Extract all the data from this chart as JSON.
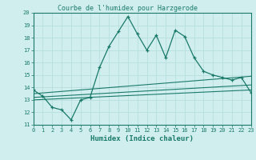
{
  "title": "Courbe de l'humidex pour Harzgerode",
  "xlabel": "Humidex (Indice chaleur)",
  "xlim": [
    0,
    23
  ],
  "ylim": [
    11,
    20
  ],
  "yticks": [
    11,
    12,
    13,
    14,
    15,
    16,
    17,
    18,
    19,
    20
  ],
  "xticks": [
    0,
    1,
    2,
    3,
    4,
    5,
    6,
    7,
    8,
    9,
    10,
    11,
    12,
    13,
    14,
    15,
    16,
    17,
    18,
    19,
    20,
    21,
    22,
    23
  ],
  "main_x": [
    0,
    1,
    2,
    3,
    4,
    5,
    6,
    7,
    8,
    9,
    10,
    11,
    12,
    13,
    14,
    15,
    16,
    17,
    18,
    19,
    20,
    21,
    22,
    23
  ],
  "main_y": [
    13.8,
    13.3,
    12.4,
    12.2,
    11.4,
    13.0,
    13.2,
    15.6,
    17.3,
    18.5,
    19.7,
    18.3,
    17.0,
    18.2,
    16.4,
    18.6,
    18.1,
    16.4,
    15.3,
    15.0,
    14.8,
    14.6,
    14.8,
    13.6
  ],
  "line2_x": [
    0,
    23
  ],
  "line2_y": [
    13.0,
    13.8
  ],
  "line3_x": [
    0,
    23
  ],
  "line3_y": [
    13.2,
    14.2
  ],
  "line4_x": [
    0,
    23
  ],
  "line4_y": [
    13.5,
    14.9
  ],
  "color": "#1a7a6a",
  "bg_color": "#d0eeee",
  "grid_color": "#b8dede",
  "title_fontsize": 6.0,
  "tick_fontsize": 5.0,
  "label_fontsize": 6.5
}
